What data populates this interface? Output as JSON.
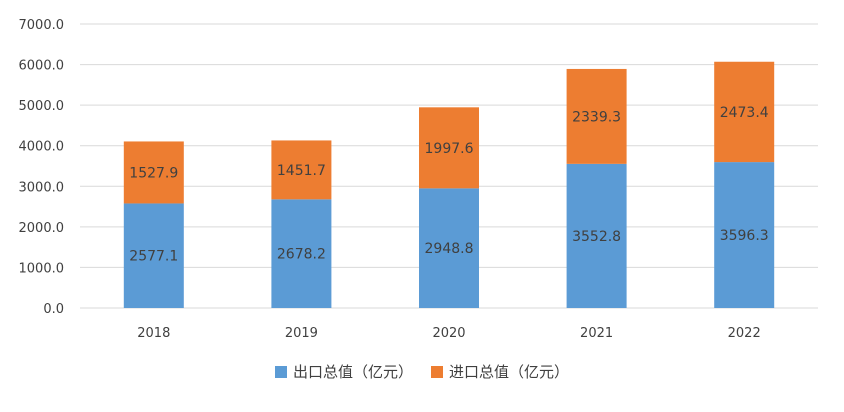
{
  "chart_data": {
    "type": "bar",
    "stacked": true,
    "categories": [
      "2018",
      "2019",
      "2020",
      "2021",
      "2022"
    ],
    "series": [
      {
        "name": "出口总值（亿元）",
        "color": "#5b9bd5",
        "values": [
          2577.1,
          2678.2,
          2948.8,
          3552.8,
          3596.3
        ],
        "labels": [
          "2577.1",
          "2678.2",
          "2948.8",
          "3552.8",
          "3596.3"
        ]
      },
      {
        "name": "进口总值（亿元）",
        "color": "#ed7d31",
        "values": [
          1527.9,
          1451.7,
          1997.6,
          2339.3,
          2473.4
        ],
        "labels": [
          "1527.9",
          "1451.7",
          "1997.6",
          "2339.3",
          "2473.4"
        ]
      }
    ],
    "ylim": [
      0,
      7000
    ],
    "yticks": [
      "0.0",
      "1000.0",
      "2000.0",
      "3000.0",
      "4000.0",
      "5000.0",
      "6000.0",
      "7000.0"
    ],
    "grid": true,
    "legend_position": "bottom",
    "title": "",
    "xlabel": "",
    "ylabel": ""
  }
}
